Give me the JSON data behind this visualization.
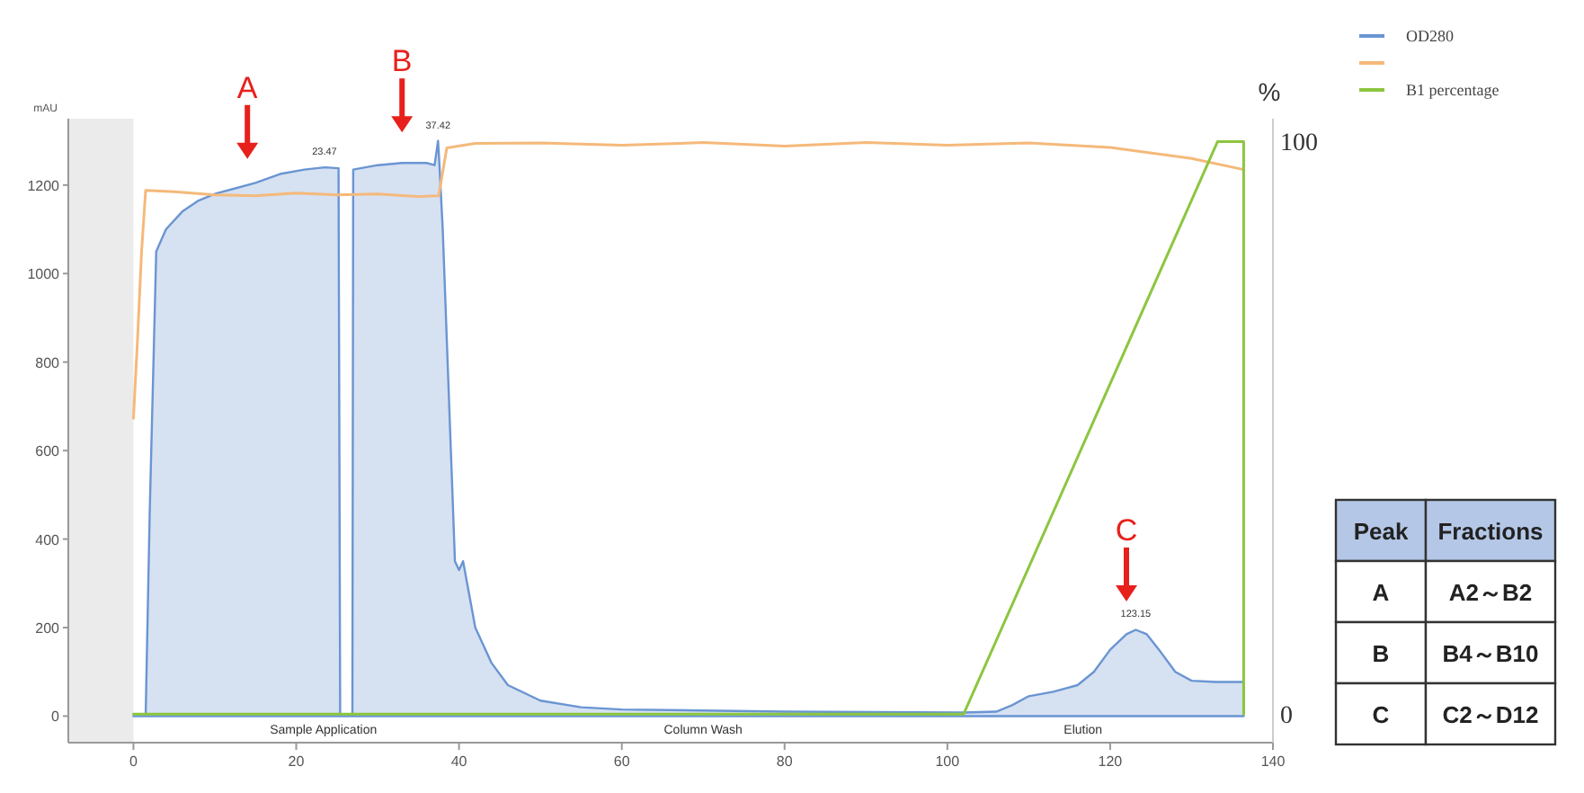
{
  "chart_data": [
    {
      "type": "line",
      "ylabel": "mAU",
      "y2label": "%",
      "xlim": [
        -8,
        140
      ],
      "xticks": [
        0,
        20,
        40,
        60,
        80,
        100,
        120,
        140
      ],
      "ylim": [
        -60,
        1350
      ],
      "yticks": [
        0,
        200,
        400,
        600,
        800,
        1000,
        1200
      ],
      "y2lim": [
        -5,
        104
      ],
      "y2ticks": [
        0,
        100
      ],
      "legend": "top right",
      "grid": false,
      "bands": [
        {
          "axis": "x",
          "from": -8,
          "to": 0,
          "color": "#ebebeb"
        }
      ],
      "series": [
        {
          "name": "OD280",
          "type": "area",
          "color": "#6a95d2",
          "x": [
            0,
            1.5,
            2,
            2.8,
            4,
            6,
            8,
            10,
            12,
            15,
            18,
            21,
            23.5,
            25.2,
            25.4,
            26.9,
            27,
            30,
            33,
            36,
            37,
            37.42,
            37.6,
            38,
            39,
            39.5,
            40,
            40.5,
            41,
            42,
            44,
            46,
            50,
            55,
            60,
            80,
            102,
            106,
            108,
            110,
            113,
            116,
            118,
            120,
            122,
            123.15,
            124.5,
            126,
            128,
            130,
            133,
            136.4
          ],
          "values": [
            0,
            0,
            460,
            1050,
            1100,
            1140,
            1165,
            1180,
            1190,
            1205,
            1225,
            1235,
            1240,
            1238,
            0,
            0,
            1235,
            1245,
            1250,
            1250,
            1245,
            1300,
            1245,
            1100,
            600,
            350,
            330,
            350,
            300,
            200,
            120,
            70,
            35,
            20,
            15,
            10,
            8,
            10,
            25,
            45,
            55,
            70,
            100,
            150,
            185,
            195,
            185,
            150,
            100,
            80,
            77,
            77
          ]
        },
        {
          "type": "line",
          "color": "#f5b97a",
          "x": [
            0,
            0.5,
            1,
            1.5,
            5,
            10,
            15,
            20,
            25,
            30,
            35,
            37.5,
            38.5,
            42,
            50,
            60,
            70,
            80,
            90,
            100,
            110,
            120,
            130,
            136.4
          ],
          "values": [
            673,
            850,
            1050,
            1188,
            1185,
            1178,
            1176,
            1182,
            1178,
            1180,
            1174,
            1176,
            1284,
            1294,
            1295,
            1290,
            1296,
            1288,
            1296,
            1290,
            1295,
            1285,
            1260,
            1235
          ]
        },
        {
          "name": "B1 percentage",
          "type": "line",
          "axis": "y2",
          "color": "#8cc63f",
          "x": [
            0,
            102,
            133.2,
            136.4,
            136.4
          ],
          "values": [
            0,
            0,
            100,
            100,
            0
          ]
        }
      ],
      "annotations": [
        {
          "text": "A",
          "x": 14,
          "y": 1190
        },
        {
          "text": "B",
          "x": 33,
          "y": 1250
        },
        {
          "text": "C",
          "x": 122,
          "y": 190
        },
        {
          "text": "23.47",
          "x": 23.47,
          "y": 1240
        },
        {
          "text": "37.42",
          "x": 37.42,
          "y": 1300
        },
        {
          "text": "123.15",
          "x": 123.15,
          "y": 195
        },
        "Sample Application",
        "Column Wash",
        "Elution"
      ]
    },
    {
      "type": "other",
      "annotations": [
        "Peak",
        "Fractions",
        "A",
        "A2～B2",
        "B",
        "B4～B10",
        "C",
        "C2～D12"
      ]
    }
  ]
}
